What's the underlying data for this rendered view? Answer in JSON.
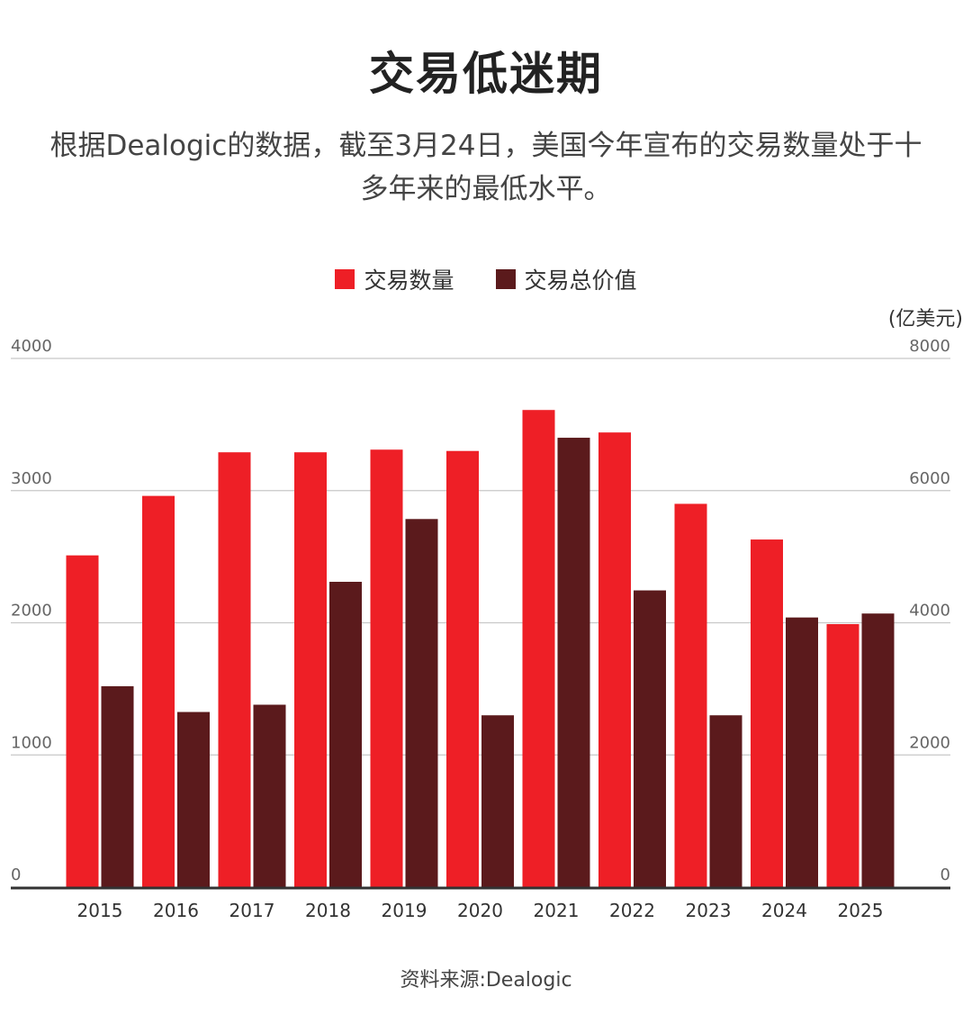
{
  "chart_data": {
    "type": "bar",
    "title": "交易低迷期",
    "subtitle": "根据Dealogic的数据，截至3月24日，美国今年宣布的交易数量处于十多年来的最低水平。",
    "categories": [
      "2015",
      "2016",
      "2017",
      "2018",
      "2019",
      "2020",
      "2021",
      "2022",
      "2023",
      "2024",
      "2025"
    ],
    "series": [
      {
        "name": "交易数量",
        "axis": "left",
        "color": "#ee1f26",
        "values": [
          2510,
          2960,
          3290,
          3290,
          3310,
          3300,
          3610,
          3440,
          2900,
          2630,
          1990
        ]
      },
      {
        "name": "交易总价值",
        "axis": "right",
        "color": "#5b1a1c",
        "values": [
          3040,
          2650,
          2760,
          4620,
          5570,
          2600,
          6800,
          4490,
          2600,
          4080,
          4140
        ]
      }
    ],
    "y_left": {
      "range": [
        0,
        4000
      ],
      "ticks": [
        "0",
        "1000",
        "2000",
        "3000",
        "4000"
      ]
    },
    "y_right": {
      "range": [
        0,
        8000
      ],
      "ticks": [
        "0",
        "2000",
        "4000",
        "6000",
        "8000"
      ],
      "unit": "(亿美元)"
    },
    "grid": true,
    "legend_position": "top-center",
    "source": "资料来源:Dealogic"
  }
}
